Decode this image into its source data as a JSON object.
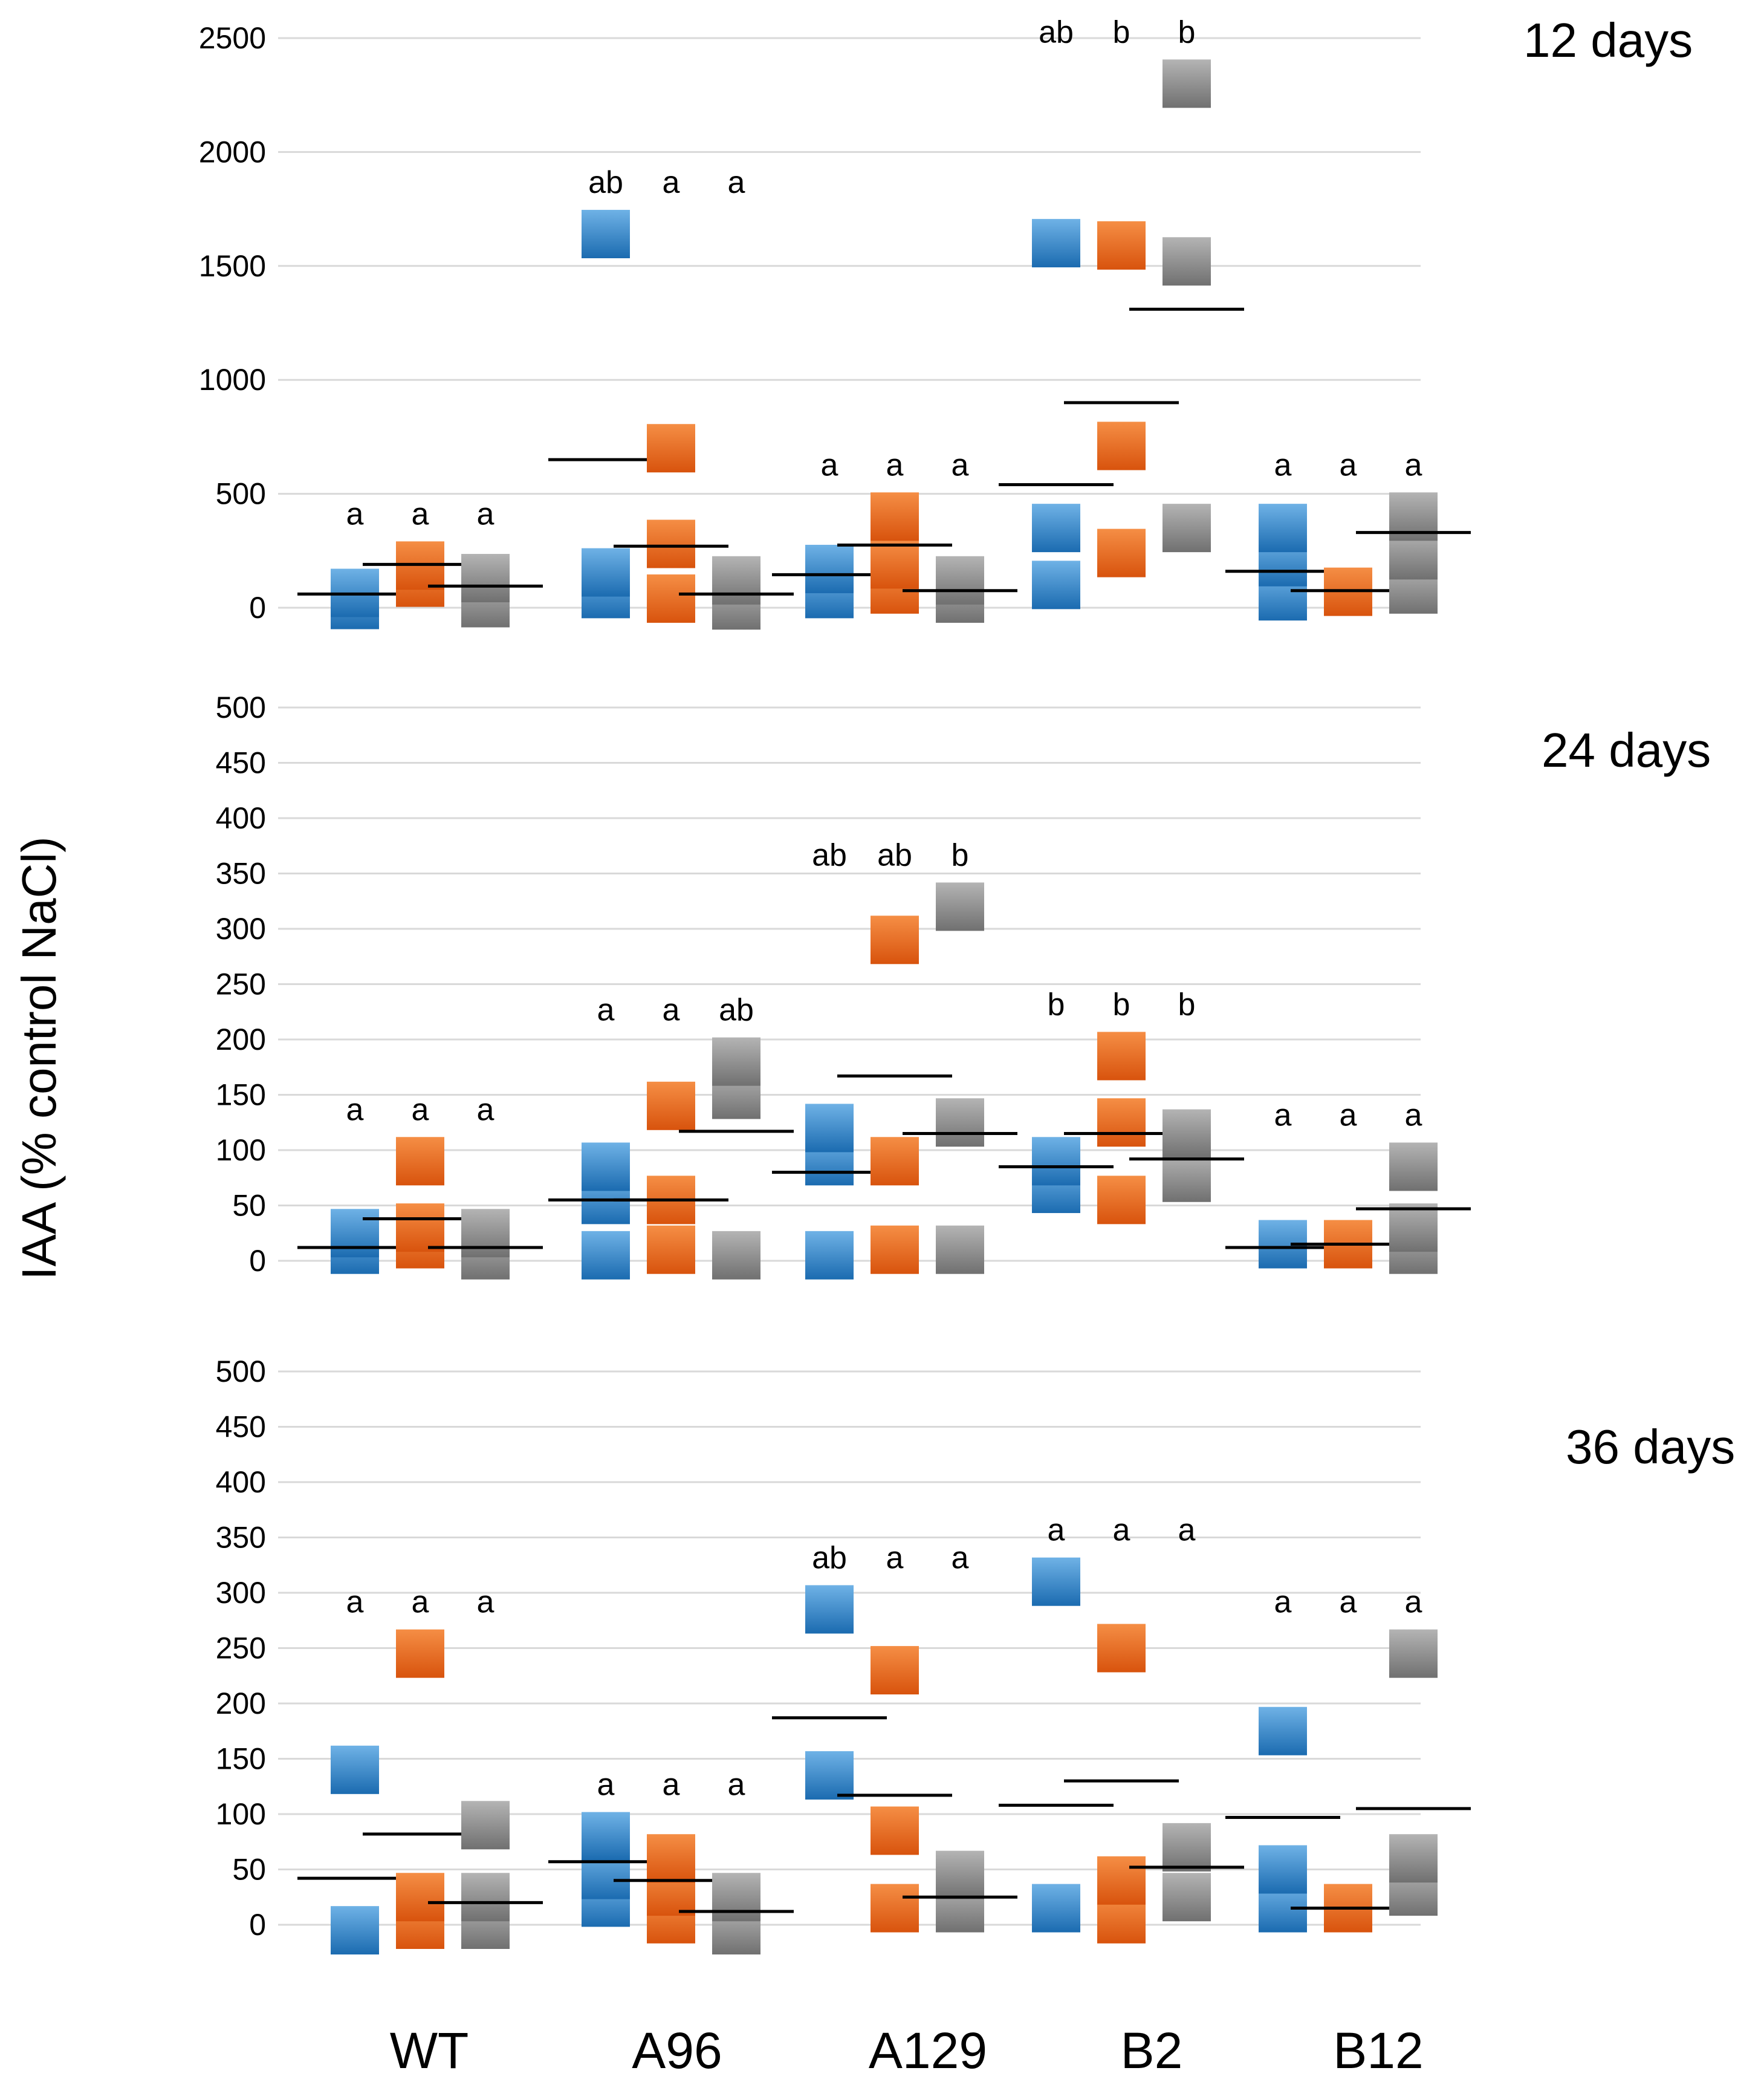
{
  "ylabel": "IAA (% control NaCl)",
  "categories": [
    "WT",
    "A96",
    "A129",
    "B2",
    "B12"
  ],
  "colors": {
    "blue": "#2f87cc",
    "orange": "#ef6a1e",
    "gray": "#7f7f7f"
  },
  "chart_data": [
    {
      "type": "scatter",
      "title": "12 days",
      "ylim": [
        0,
        2500
      ],
      "yticks": [
        "0",
        "500",
        "1000",
        "1500",
        "2000",
        "2500"
      ],
      "series": [
        {
          "name": "WT-1",
          "points": [
            12,
            65
          ],
          "mean": 60,
          "letter": "a"
        },
        {
          "name": "WT-2",
          "points": [
            110,
            185
          ],
          "mean": 190,
          "letter": "a"
        },
        {
          "name": "WT-3",
          "points": [
            20,
            130
          ],
          "mean": 95,
          "letter": "a"
        },
        {
          "name": "A96-1",
          "points": [
            60,
            155,
            1640
          ],
          "mean": 650,
          "letter": "ab"
        },
        {
          "name": "A96-2",
          "points": [
            40,
            280,
            700
          ],
          "mean": 270,
          "letter": "a"
        },
        {
          "name": "A96-3",
          "points": [
            10,
            120
          ],
          "mean": 60,
          "letter": "a"
        },
        {
          "name": "A129-1",
          "points": [
            60,
            170
          ],
          "mean": 145,
          "letter": "a"
        },
        {
          "name": "A129-2",
          "points": [
            80,
            190,
            400
          ],
          "mean": 275,
          "letter": "a"
        },
        {
          "name": "A129-3",
          "points": [
            40,
            120
          ],
          "mean": 75,
          "letter": "a"
        },
        {
          "name": "B2-1",
          "points": [
            100,
            350,
            1600
          ],
          "mean": 540,
          "letter": "ab"
        },
        {
          "name": "B2-2",
          "points": [
            240,
            710,
            1590
          ],
          "mean": 900,
          "letter": "b"
        },
        {
          "name": "B2-3",
          "points": [
            350,
            1520,
            2300
          ],
          "mean": 1310,
          "letter": "b"
        },
        {
          "name": "B12-1",
          "points": [
            50,
            200,
            350
          ],
          "mean": 160,
          "letter": "a"
        },
        {
          "name": "B12-2",
          "points": [
            70
          ],
          "mean": 75,
          "letter": "a"
        },
        {
          "name": "B12-3",
          "points": [
            80,
            230,
            400
          ],
          "mean": 330,
          "letter": "a"
        }
      ]
    },
    {
      "type": "scatter",
      "title": "24 days",
      "ylim": [
        0,
        500
      ],
      "yticks": [
        "0",
        "50",
        "100",
        "150",
        "200",
        "250",
        "300",
        "350",
        "400",
        "450",
        "500"
      ],
      "series": [
        {
          "name": "WT-1",
          "points": [
            10,
            25
          ],
          "mean": 12,
          "letter": "a"
        },
        {
          "name": "WT-2",
          "points": [
            15,
            30,
            90
          ],
          "mean": 38,
          "letter": "a"
        },
        {
          "name": "WT-3",
          "points": [
            5,
            25
          ],
          "mean": 12,
          "letter": "a"
        },
        {
          "name": "A96-1",
          "points": [
            5,
            55,
            85
          ],
          "mean": 55,
          "letter": "a"
        },
        {
          "name": "A96-2",
          "points": [
            10,
            55,
            140
          ],
          "mean": 55,
          "letter": "a"
        },
        {
          "name": "A96-3",
          "points": [
            5,
            150,
            180
          ],
          "mean": 117,
          "letter": "ab"
        },
        {
          "name": "A129-1",
          "points": [
            5,
            90,
            120
          ],
          "mean": 80,
          "letter": "ab"
        },
        {
          "name": "A129-2",
          "points": [
            10,
            90,
            290
          ],
          "mean": 167,
          "letter": "ab"
        },
        {
          "name": "A129-3",
          "points": [
            10,
            125,
            320
          ],
          "mean": 115,
          "letter": "b"
        },
        {
          "name": "B2-1",
          "points": [
            65,
            90
          ],
          "mean": 85,
          "letter": "b"
        },
        {
          "name": "B2-2",
          "points": [
            55,
            125,
            185
          ],
          "mean": 115,
          "letter": "b"
        },
        {
          "name": "B2-3",
          "points": [
            75,
            115
          ],
          "mean": 92,
          "letter": "b"
        },
        {
          "name": "B12-1",
          "points": [
            15
          ],
          "mean": 12,
          "letter": "a"
        },
        {
          "name": "B12-2",
          "points": [
            15
          ],
          "mean": 15,
          "letter": "a"
        },
        {
          "name": "B12-3",
          "points": [
            10,
            30,
            85
          ],
          "mean": 47,
          "letter": "a"
        }
      ]
    },
    {
      "type": "scatter",
      "title": "36 days",
      "ylim": [
        0,
        500
      ],
      "yticks": [
        "0",
        "50",
        "100",
        "150",
        "200",
        "250",
        "300",
        "350",
        "400",
        "450",
        "500"
      ],
      "series": [
        {
          "name": "WT-1",
          "points": [
            -5,
            140
          ],
          "mean": 42,
          "letter": "a"
        },
        {
          "name": "WT-2",
          "points": [
            0,
            25,
            245
          ],
          "mean": 82,
          "letter": "a"
        },
        {
          "name": "WT-3",
          "points": [
            0,
            25,
            90
          ],
          "mean": 20,
          "letter": "a"
        },
        {
          "name": "A96-1",
          "points": [
            20,
            45,
            80
          ],
          "mean": 57,
          "letter": "a"
        },
        {
          "name": "A96-2",
          "points": [
            5,
            30,
            60
          ],
          "mean": 40,
          "letter": "a"
        },
        {
          "name": "A96-3",
          "points": [
            -5,
            25
          ],
          "mean": 12,
          "letter": "a"
        },
        {
          "name": "A129-1",
          "points": [
            135,
            285
          ],
          "mean": 187,
          "letter": "ab"
        },
        {
          "name": "A129-2",
          "points": [
            15,
            85,
            230
          ],
          "mean": 117,
          "letter": "a"
        },
        {
          "name": "A129-3",
          "points": [
            15,
            45
          ],
          "mean": 25,
          "letter": "a"
        },
        {
          "name": "B2-1",
          "points": [
            15,
            310
          ],
          "mean": 108,
          "letter": "a"
        },
        {
          "name": "B2-2",
          "points": [
            5,
            40,
            250
          ],
          "mean": 130,
          "letter": "a"
        },
        {
          "name": "B2-3",
          "points": [
            25,
            70
          ],
          "mean": 52,
          "letter": "a"
        },
        {
          "name": "B12-1",
          "points": [
            15,
            50,
            175
          ],
          "mean": 97,
          "letter": "a"
        },
        {
          "name": "B12-2",
          "points": [
            15
          ],
          "mean": 15,
          "letter": "a"
        },
        {
          "name": "B12-3",
          "points": [
            30,
            60,
            245
          ],
          "mean": 105,
          "letter": "a"
        }
      ]
    }
  ]
}
